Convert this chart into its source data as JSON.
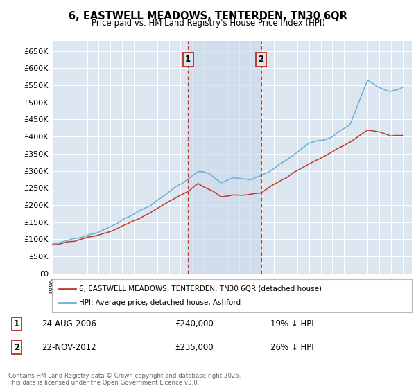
{
  "title": "6, EASTWELL MEADOWS, TENTERDEN, TN30 6QR",
  "subtitle": "Price paid vs. HM Land Registry's House Price Index (HPI)",
  "background_color": "#ffffff",
  "plot_bg_color": "#dce6f1",
  "grid_color": "#ffffff",
  "hpi_line_color": "#6baed6",
  "price_line_color": "#c0392b",
  "vline_color": "#c0392b",
  "ylim": [
    0,
    680000
  ],
  "ytick_values": [
    0,
    50000,
    100000,
    150000,
    200000,
    250000,
    300000,
    350000,
    400000,
    450000,
    500000,
    550000,
    600000,
    650000
  ],
  "ytick_labels": [
    "£0",
    "£50K",
    "£100K",
    "£150K",
    "£200K",
    "£250K",
    "£300K",
    "£350K",
    "£400K",
    "£450K",
    "£500K",
    "£550K",
    "£600K",
    "£650K"
  ],
  "xlim_start": 1995,
  "xlim_end": 2025.8,
  "t1_year": 2006.646,
  "t2_year": 2012.896,
  "t1_price": 240000,
  "t2_price": 235000,
  "legend_line1": "6, EASTWELL MEADOWS, TENTERDEN, TN30 6QR (detached house)",
  "legend_line2": "HPI: Average price, detached house, Ashford",
  "ann1_date": "24-AUG-2006",
  "ann1_price": "£240,000",
  "ann1_pct": "19% ↓ HPI",
  "ann2_date": "22-NOV-2012",
  "ann2_price": "£235,000",
  "ann2_pct": "26% ↓ HPI",
  "footer": "Contains HM Land Registry data © Crown copyright and database right 2025.\nThis data is licensed under the Open Government Licence v3.0."
}
